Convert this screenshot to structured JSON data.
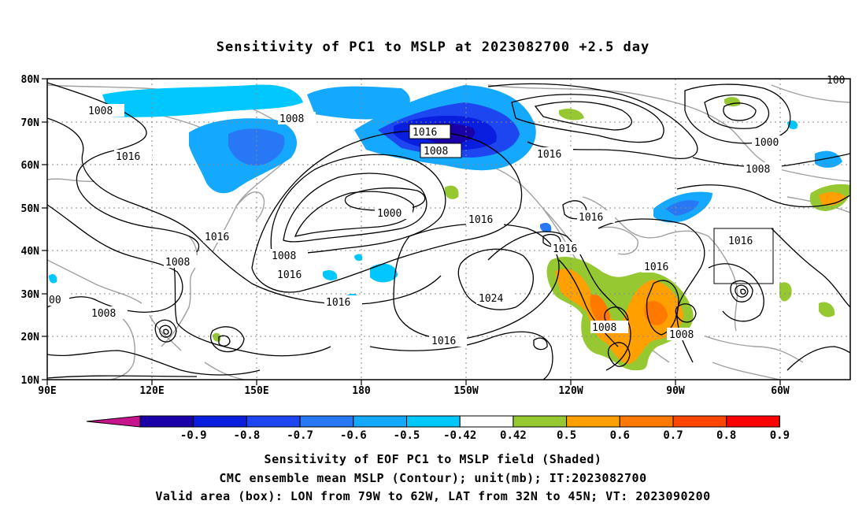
{
  "title": "Sensitivity of PC1 to MSLP at 2023082700 +2.5 day",
  "lat_labels": [
    "80N",
    "70N",
    "60N",
    "50N",
    "40N",
    "30N",
    "20N",
    "10N"
  ],
  "lon_labels": [
    "90E",
    "120E",
    "150E",
    "180",
    "150W",
    "120W",
    "90W",
    "60W"
  ],
  "contour_labels": [
    {
      "text": "1008"
    },
    {
      "text": "1016"
    },
    {
      "text": "1008"
    },
    {
      "text": "1016"
    },
    {
      "text": "1008"
    },
    {
      "text": "1016"
    },
    {
      "text": "1000"
    },
    {
      "text": "1016"
    },
    {
      "text": "1016"
    },
    {
      "text": "1000"
    },
    {
      "text": "1008"
    },
    {
      "text": "1016"
    },
    {
      "text": "1008"
    },
    {
      "text": "1016"
    },
    {
      "text": "1016"
    },
    {
      "text": "1008"
    },
    {
      "text": "00"
    },
    {
      "text": "1016"
    },
    {
      "text": "1024"
    },
    {
      "text": "1016"
    },
    {
      "text": "1016"
    },
    {
      "text": "1016"
    },
    {
      "text": "1008"
    },
    {
      "text": "1008"
    },
    {
      "text": "100"
    }
  ],
  "colorbar": {
    "labels": [
      "-0.9",
      "-0.8",
      "-0.7",
      "-0.6",
      "-0.5",
      "-0.42",
      "0.42",
      "0.5",
      "0.6",
      "0.7",
      "0.8",
      "0.9"
    ],
    "colors": [
      "#1a00a8",
      "#0a1ee0",
      "#1e46f0",
      "#2878f5",
      "#14a8ff",
      "#00c8ff",
      "#ffffff",
      "#96c832",
      "#ffa000",
      "#ff7800",
      "#ff4600",
      "#ff0000"
    ],
    "low_color": "#c8148c",
    "high_color": "#f5a0c8"
  },
  "captions": [
    "Sensitivity of EOF PC1 to MSLP field (Shaded)",
    "CMC ensemble mean MSLP (Contour); unit(mb); IT:2023082700",
    "Valid area (box): LON from 79W to 62W, LAT from 32N to 45N; VT: 2023090200"
  ]
}
